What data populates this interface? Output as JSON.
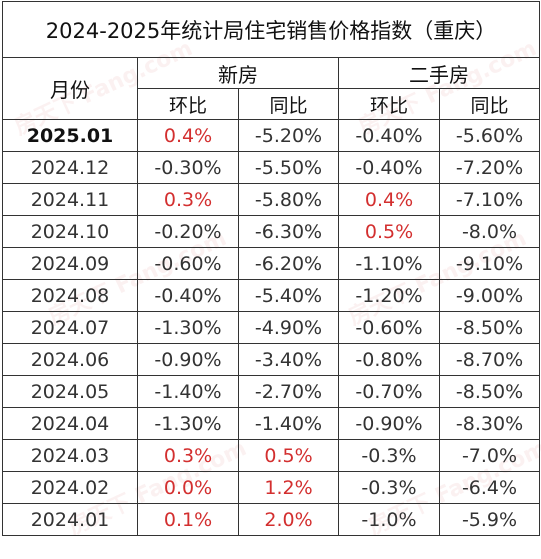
{
  "table": {
    "title": "2024-2025年统计局住宅销售价格指数（重庆）",
    "month_header": "月份",
    "group_new": "新房",
    "group_second": "二手房",
    "col_mom": "环比",
    "col_yoy": "同比",
    "highlight_color": "#d32f2f",
    "rows": [
      {
        "month": "2025.01",
        "new_mom": "0.4%",
        "new_yoy": "-5.20%",
        "sec_mom": "-0.40%",
        "sec_yoy": "-5.60%"
      },
      {
        "month": "2024.12",
        "new_mom": "-0.30%",
        "new_yoy": "-5.50%",
        "sec_mom": "-0.40%",
        "sec_yoy": "-7.20%"
      },
      {
        "month": "2024.11",
        "new_mom": "0.3%",
        "new_yoy": "-5.80%",
        "sec_mom": "0.4%",
        "sec_yoy": "-7.10%"
      },
      {
        "month": "2024.10",
        "new_mom": "-0.20%",
        "new_yoy": "-6.30%",
        "sec_mom": "0.5%",
        "sec_yoy": "-8.0%"
      },
      {
        "month": "2024.09",
        "new_mom": "-0.60%",
        "new_yoy": "-6.20%",
        "sec_mom": "-1.10%",
        "sec_yoy": "-9.10%"
      },
      {
        "month": "2024.08",
        "new_mom": "-0.40%",
        "new_yoy": "-5.40%",
        "sec_mom": "-1.20%",
        "sec_yoy": "-9.00%"
      },
      {
        "month": "2024.07",
        "new_mom": "-1.30%",
        "new_yoy": "-4.90%",
        "sec_mom": "-0.60%",
        "sec_yoy": "-8.50%"
      },
      {
        "month": "2024.06",
        "new_mom": "-0.90%",
        "new_yoy": "-3.40%",
        "sec_mom": "-0.80%",
        "sec_yoy": "-8.70%"
      },
      {
        "month": "2024.05",
        "new_mom": "-1.40%",
        "new_yoy": "-2.70%",
        "sec_mom": "-0.70%",
        "sec_yoy": "-8.50%"
      },
      {
        "month": "2024.04",
        "new_mom": "-1.30%",
        "new_yoy": "-1.40%",
        "sec_mom": "-0.90%",
        "sec_yoy": "-8.30%"
      },
      {
        "month": "2024.03",
        "new_mom": "0.3%",
        "new_yoy": "0.5%",
        "sec_mom": "-0.3%",
        "sec_yoy": "-7.0%"
      },
      {
        "month": "2024.02",
        "new_mom": "0.0%",
        "new_yoy": "1.2%",
        "sec_mom": "-0.3%",
        "sec_yoy": "-6.4%"
      },
      {
        "month": "2024.01",
        "new_mom": "0.1%",
        "new_yoy": "2.0%",
        "sec_mom": "-1.0%",
        "sec_yoy": "-5.9%"
      }
    ]
  }
}
